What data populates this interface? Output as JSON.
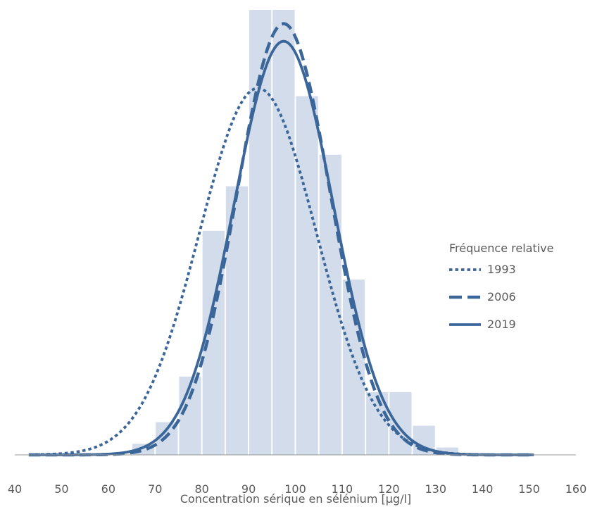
{
  "chart_data": {
    "type": "bar",
    "title": "",
    "xlabel": "Concentration sérique en sélénium [µg/l]",
    "ylabel": "",
    "xlim": [
      40,
      160
    ],
    "ylim": [
      0,
      0.2
    ],
    "x_ticks": [
      "40",
      "50",
      "60",
      "70",
      "80",
      "90",
      "100",
      "110",
      "120",
      "130",
      "140",
      "150",
      "160"
    ],
    "grid": false,
    "legend_position": "right",
    "legend_title": "Fréquence relative",
    "histogram": {
      "bin_width": 5,
      "bin_starts": [
        65,
        70,
        75,
        80,
        85,
        90,
        95,
        100,
        105,
        110,
        115,
        120,
        125,
        130
      ],
      "values": [
        0.005,
        0.0147,
        0.0352,
        0.1007,
        0.1207,
        0.2,
        0.2,
        0.1612,
        0.1349,
        0.0788,
        0.0282,
        0.0282,
        0.0131,
        0.0033
      ],
      "color": "#d3dceb"
    },
    "series": [
      {
        "name": "1993",
        "type": "line",
        "dash": "dotted",
        "mean": 92,
        "sd": 12.5,
        "peak": 0.1648,
        "x_start": 43,
        "x_end": 151,
        "color": "#3b6699"
      },
      {
        "name": "2006",
        "type": "line",
        "dash": "dashed",
        "mean": 97.5,
        "sd": 10.0,
        "peak": 0.1938,
        "x_start": 43,
        "x_end": 151,
        "color": "#3b6699"
      },
      {
        "name": "2019",
        "type": "line",
        "dash": "solid",
        "mean": 97.5,
        "sd": 10.6,
        "peak": 0.1859,
        "x_start": 43,
        "x_end": 151,
        "color": "#3b6699"
      }
    ]
  }
}
